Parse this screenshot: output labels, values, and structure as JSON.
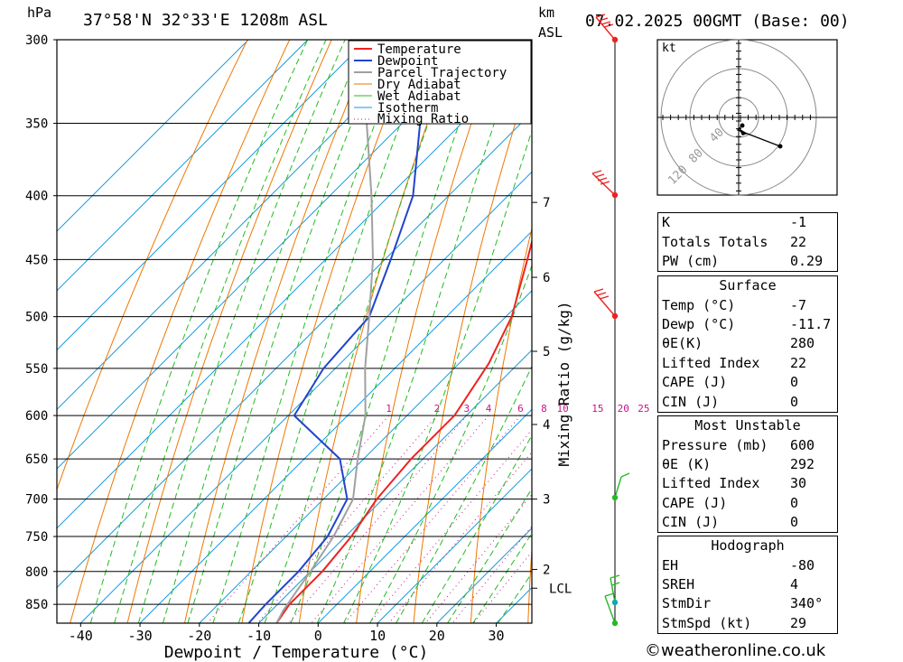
{
  "header": {
    "location": "37°58'N 32°33'E 1208m ASL",
    "hpa_label": "hPa",
    "km_label": "km",
    "asl_label": "ASL",
    "datetime": "07.02.2025 00GMT (Base: 00)"
  },
  "chart_data": {
    "type": "skew-t",
    "xlabel": "Dewpoint / Temperature (°C)",
    "right_axis_label": "Mixing Ratio (g/kg)",
    "pressure_levels": [
      300,
      350,
      400,
      450,
      500,
      550,
      600,
      650,
      700,
      750,
      800,
      850
    ],
    "temperature_ticks": [
      -40,
      -30,
      -20,
      -10,
      0,
      10,
      20,
      30
    ],
    "xlim": [
      -44,
      36
    ],
    "pressure_range": [
      300,
      880
    ],
    "skew": 1.0,
    "height_km_ticks": [
      {
        "label": "7",
        "p": 405
      },
      {
        "label": "6",
        "p": 465
      },
      {
        "label": "5",
        "p": 533
      },
      {
        "label": "4",
        "p": 610
      },
      {
        "label": "3",
        "p": 700
      },
      {
        "label": "2",
        "p": 797
      },
      {
        "label": "LCL",
        "p": 825
      }
    ],
    "mixing_ratio_labels": [
      "1",
      "2",
      "3",
      "4",
      "6",
      "8",
      "10",
      "15",
      "20",
      "25"
    ],
    "mixing_ratio_values": [
      1,
      2,
      3,
      4,
      6,
      8,
      10,
      15,
      20,
      25
    ],
    "legend": {
      "placement": "top-right",
      "entries": [
        {
          "label": "Temperature",
          "color": "#ee2222"
        },
        {
          "label": "Dewpoint",
          "color": "#2244cc"
        },
        {
          "label": "Parcel Trajectory",
          "color": "#a0a0a0"
        },
        {
          "label": "Dry Adiabat",
          "color": "#ee7700"
        },
        {
          "label": "Wet Adiabat",
          "color": "#22bb22"
        },
        {
          "label": "Isotherm",
          "color": "#1199dd"
        },
        {
          "label": "Mixing Ratio",
          "color": "#cc1188"
        }
      ]
    },
    "series": [
      {
        "name": "Temperature",
        "color": "#ee2222",
        "points": [
          [
            300,
            -44
          ],
          [
            350,
            -43
          ],
          [
            400,
            -34
          ],
          [
            450,
            -26
          ],
          [
            500,
            -19
          ],
          [
            545,
            -15
          ],
          [
            600,
            -12
          ],
          [
            650,
            -12
          ],
          [
            700,
            -11
          ],
          [
            750,
            -9
          ],
          [
            800,
            -8
          ],
          [
            850,
            -8
          ],
          [
            880,
            -7
          ]
        ]
      },
      {
        "name": "Dewpoint",
        "color": "#2244cc",
        "points": [
          [
            300,
            -75
          ],
          [
            350,
            -67
          ],
          [
            400,
            -56
          ],
          [
            450,
            -49
          ],
          [
            500,
            -43
          ],
          [
            550,
            -42
          ],
          [
            600,
            -39
          ],
          [
            650,
            -24
          ],
          [
            700,
            -16
          ],
          [
            750,
            -13
          ],
          [
            800,
            -12
          ],
          [
            850,
            -12
          ],
          [
            880,
            -11.7
          ]
        ]
      },
      {
        "name": "Parcel Trajectory",
        "color": "#a0a0a0",
        "points": [
          [
            300,
            -88
          ],
          [
            350,
            -76
          ],
          [
            400,
            -63
          ],
          [
            450,
            -52
          ],
          [
            500,
            -43
          ],
          [
            550,
            -35
          ],
          [
            600,
            -27
          ],
          [
            650,
            -21
          ],
          [
            700,
            -15
          ],
          [
            750,
            -12
          ],
          [
            800,
            -10
          ],
          [
            830,
            -9
          ],
          [
            860,
            -8
          ],
          [
            880,
            -7
          ]
        ]
      }
    ]
  },
  "hodograph": {
    "unit": "kt",
    "ring_labels": [
      "40",
      "80",
      "120"
    ]
  },
  "indices": {
    "k_label": "K",
    "k_value": "-1",
    "tt_label": "Totals Totals",
    "tt_value": "22",
    "pw_label": "PW (cm)",
    "pw_value": "0.29"
  },
  "surface": {
    "title": "Surface",
    "rows": [
      {
        "label": "Temp (°C)",
        "value": "-7"
      },
      {
        "label": "Dewp (°C)",
        "value": "-11.7"
      },
      {
        "label": "θE(K)",
        "value": "280"
      },
      {
        "label": "Lifted Index",
        "value": "22"
      },
      {
        "label": "CAPE (J)",
        "value": "0"
      },
      {
        "label": "CIN (J)",
        "value": "0"
      }
    ]
  },
  "most_unstable": {
    "title": "Most Unstable",
    "rows": [
      {
        "label": "Pressure (mb)",
        "value": "600"
      },
      {
        "label": "θE (K)",
        "value": "292"
      },
      {
        "label": "Lifted Index",
        "value": "30"
      },
      {
        "label": "CAPE (J)",
        "value": "0"
      },
      {
        "label": "CIN (J)",
        "value": "0"
      }
    ]
  },
  "hodograph_table": {
    "title": "Hodograph",
    "rows": [
      {
        "label": "EH",
        "value": "-80"
      },
      {
        "label": "SREH",
        "value": "4"
      },
      {
        "label": "StmDir",
        "value": "340°"
      },
      {
        "label": "StmSpd (kt)",
        "value": "29"
      }
    ]
  },
  "footer": {
    "copyright_symbol": "©",
    "site": "weatheronline.co.uk"
  },
  "colors": {
    "temperature": "#ee2222",
    "dewpoint": "#2244cc",
    "parcel": "#a0a0a0",
    "dry_adiabat": "#ee7700",
    "wet_adiabat": "#22bb22",
    "isotherm": "#1199dd",
    "mixing_ratio": "#cc1188",
    "wind_barb_high": "#ee2222",
    "wind_barb_low": "#22bb22",
    "wind_barb_surface": "#11aaaa"
  }
}
